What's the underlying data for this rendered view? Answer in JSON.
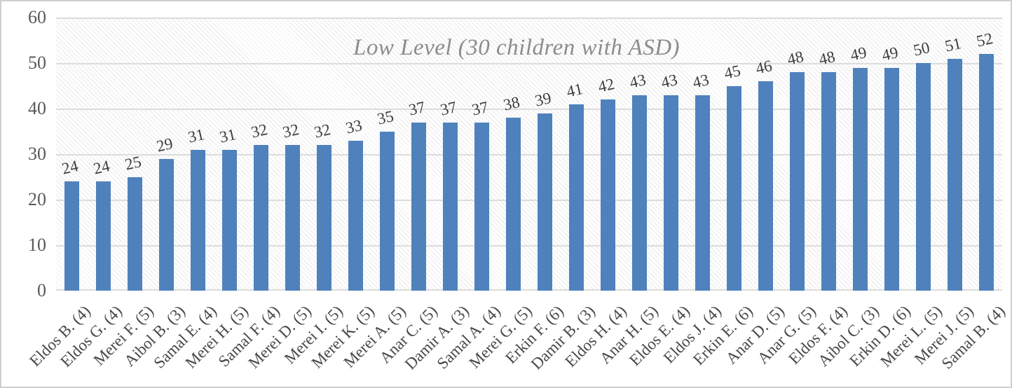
{
  "chart_data": {
    "type": "bar",
    "title": "Low Level (30 children with ASD)",
    "categories": [
      "Eldos B. (4)",
      "Eldos G. (4)",
      "Merei F. (5)",
      "Aibol B. (3)",
      "Samal E. (4)",
      "Merei H. (5)",
      "Samal F. (4)",
      "Merei D. (5)",
      "Merei I. (5)",
      "Merei K. (5)",
      "Merei A. (5)",
      "Anar C. (5)",
      "Damir A. (3)",
      "Samal A. (4)",
      "Merei G. (5)",
      "Erkin F. (6)",
      "Damir B. (3)",
      "Eldos H. (4)",
      "Anar H. (5)",
      "Eldos E. (4)",
      "Eldos J. (4)",
      "Erkin E. (6)",
      "Anar D. (5)",
      "Anar G. (5)",
      "Eldos F. (4)",
      "Aibol C. (3)",
      "Erkin D. (6)",
      "Merei L. (5)",
      "Merei J. (5)",
      "Samal B. (4)"
    ],
    "values": [
      24,
      24,
      25,
      29,
      31,
      31,
      32,
      32,
      32,
      33,
      35,
      37,
      37,
      37,
      38,
      39,
      41,
      42,
      43,
      43,
      43,
      45,
      46,
      48,
      48,
      49,
      49,
      50,
      51,
      52
    ],
    "xlabel": "",
    "ylabel": "",
    "ylim": [
      0,
      60
    ],
    "yticks": [
      0,
      10,
      20,
      30,
      40,
      50,
      60
    ],
    "grid": "horizontal",
    "legend_position": "none",
    "data_labels": "above-bars",
    "data_label_rotation_deg": -13,
    "category_label_rotation_deg": -45,
    "plot_background": "diagonal-hatch",
    "colors": {
      "bar": "#4f81bd",
      "title": "#8c8c8c",
      "gridline": "#dcdcdc",
      "data_label": "#3d3d3d",
      "axis_tick_label": "#595959",
      "category_label": "#474747",
      "frame_border": "#cfcfcf"
    }
  }
}
